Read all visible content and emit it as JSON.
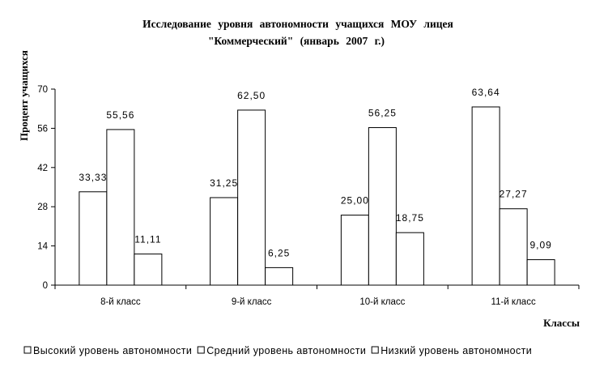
{
  "chart_data": {
    "type": "bar",
    "title_line1": "Исследование уровня автономности учащихся МОУ лицея",
    "title_line2": "\"Коммерческий\" (январь 2007 г.)",
    "ylabel": "Процент учащихся",
    "xlabel": "Классы",
    "ylim": [
      0,
      70
    ],
    "yticks": [
      "0",
      "14",
      "28",
      "42",
      "56",
      "70"
    ],
    "ytick_values": [
      0,
      14,
      28,
      42,
      56,
      70
    ],
    "categories": [
      "8-й класс",
      "9-й класс",
      "10-й класс",
      "11-й класс"
    ],
    "series": [
      {
        "name": "Высокий уровень автономности",
        "values": [
          33.33,
          31.25,
          25.0,
          63.64
        ],
        "labels": [
          "33,33",
          "31,25",
          "25,00",
          "63,64"
        ]
      },
      {
        "name": "Средний уровень автономности",
        "values": [
          55.56,
          62.5,
          56.25,
          27.27
        ],
        "labels": [
          "55,56",
          "62,50",
          "56,25",
          "27,27"
        ]
      },
      {
        "name": "Низкий уровень автономности",
        "values": [
          11.11,
          6.25,
          18.75,
          9.09
        ],
        "labels": [
          "11,11",
          "6,25",
          "18,75",
          "9,09"
        ]
      }
    ],
    "grid": false,
    "legend_position": "bottom",
    "bar_fill": "#ffffff",
    "bar_stroke": "#000000"
  }
}
